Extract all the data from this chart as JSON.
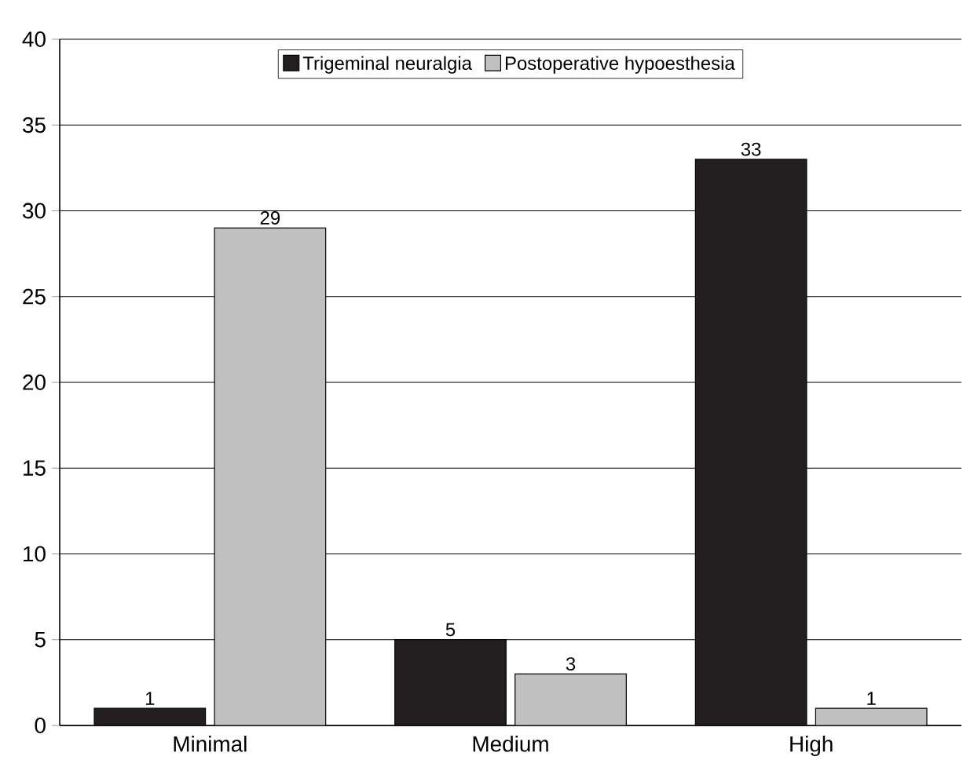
{
  "chart_data": {
    "type": "bar",
    "categories": [
      "Minimal",
      "Medium",
      "High"
    ],
    "series": [
      {
        "name": "Trigeminal neuralgia",
        "color": "#231f20",
        "values": [
          1,
          5,
          33
        ]
      },
      {
        "name": "Postoperative hypoesthesia",
        "color": "#c0c0c0",
        "values": [
          29,
          3,
          1
        ]
      }
    ],
    "ylim": [
      0,
      40
    ],
    "yticks": [
      0,
      5,
      10,
      15,
      20,
      25,
      30,
      35,
      40
    ],
    "grid": "y",
    "legend": "top",
    "data_labels": true
  }
}
